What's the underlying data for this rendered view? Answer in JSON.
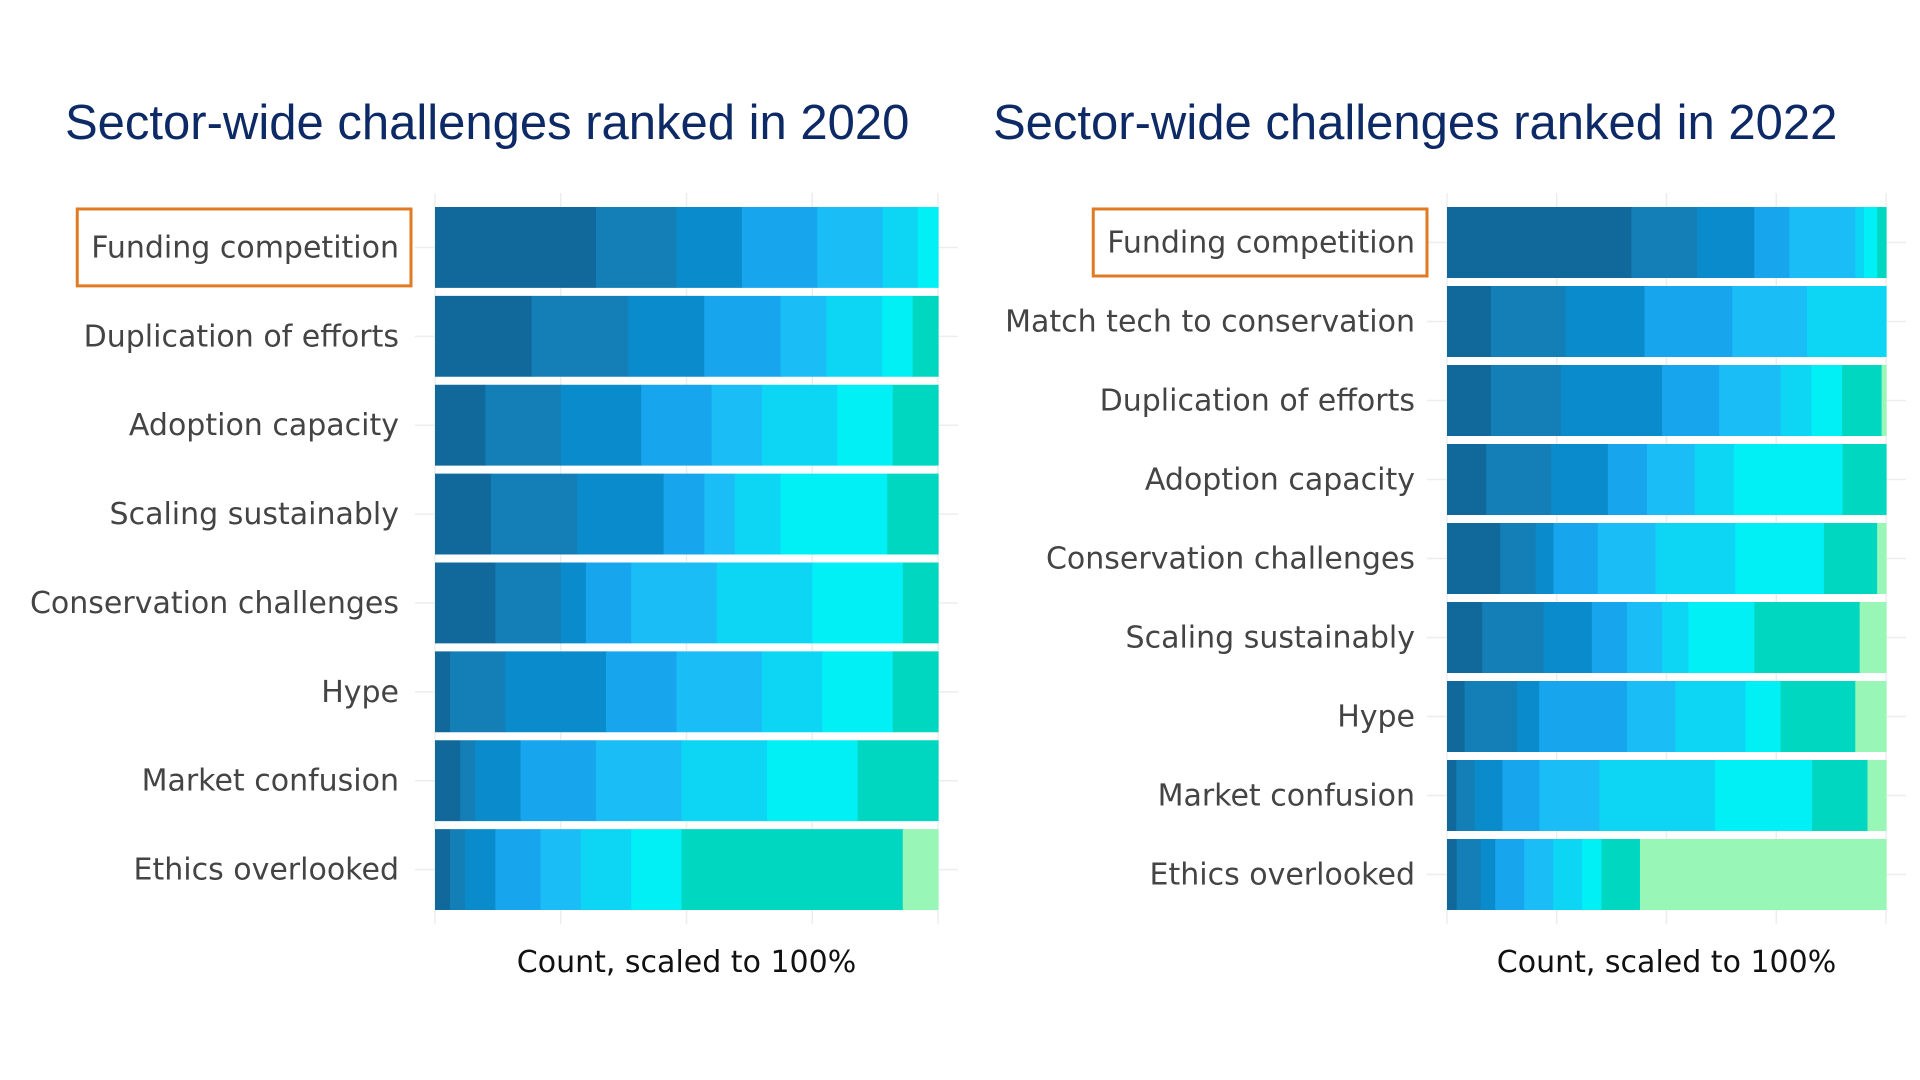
{
  "chart_data": [
    {
      "type": "bar",
      "orientation": "horizontal",
      "stacked": true,
      "normalized": true,
      "title": "Sector-wide challenges ranked in 2020",
      "xlabel": "Count, scaled to 100%",
      "ylabel": "",
      "xlim": [
        0,
        100
      ],
      "grid": true,
      "legend": "none",
      "highlighted_category": "Funding competition",
      "highlight_color": "#e07b24",
      "segment_colors": [
        "#10689b",
        "#137fb6",
        "#0a8ccc",
        "#17a6ed",
        "#1bbdf7",
        "#0dd6f5",
        "#00f0f6",
        "#00d7c0",
        "#98f7b7"
      ],
      "categories": [
        "Funding competition",
        "Duplication of efforts",
        "Adoption capacity",
        "Scaling sustainably",
        "Conservation challenges",
        "Hype",
        "Market confusion",
        "Ethics overlooked"
      ],
      "segments": [
        [
          32,
          16,
          13,
          15,
          13,
          7,
          4,
          0,
          0
        ],
        [
          19,
          19,
          15,
          15,
          9,
          11,
          6,
          5,
          0
        ],
        [
          10,
          15,
          16,
          14,
          10,
          15,
          11,
          9,
          0
        ],
        [
          11,
          17,
          17,
          8,
          6,
          9,
          21,
          10,
          0
        ],
        [
          12,
          13,
          5,
          9,
          17,
          19,
          18,
          7,
          0
        ],
        [
          3,
          11,
          20,
          14,
          17,
          12,
          14,
          9,
          0
        ],
        [
          5,
          3,
          9,
          15,
          17,
          17,
          18,
          16,
          0
        ],
        [
          3,
          3,
          6,
          9,
          8,
          10,
          10,
          44,
          7
        ]
      ]
    },
    {
      "type": "bar",
      "orientation": "horizontal",
      "stacked": true,
      "normalized": true,
      "title": "Sector-wide challenges ranked in 2022",
      "xlabel": "Count, scaled to 100%",
      "ylabel": "",
      "xlim": [
        0,
        100
      ],
      "grid": true,
      "legend": "none",
      "highlighted_category": "Funding competition",
      "highlight_color": "#e07b24",
      "segment_colors": [
        "#10689b",
        "#137fb6",
        "#0a8ccc",
        "#17a6ed",
        "#1bbdf7",
        "#0dd6f5",
        "#00f0f6",
        "#00d7c0",
        "#98f7b7"
      ],
      "categories": [
        "Funding competition",
        "Match tech to conservation",
        "Duplication of efforts",
        "Adoption capacity",
        "Conservation challenges",
        "Scaling sustainably",
        "Hype",
        "Market confusion",
        "Ethics overlooked"
      ],
      "segments": [
        [
          42,
          15,
          13,
          8,
          15,
          2,
          3,
          2,
          0
        ],
        [
          10,
          17,
          18,
          20,
          17,
          18,
          0,
          0,
          0
        ],
        [
          10,
          16,
          23,
          13,
          14,
          7,
          7,
          9,
          1
        ],
        [
          9,
          15,
          13,
          9,
          11,
          9,
          25,
          10,
          0
        ],
        [
          12,
          8,
          4,
          10,
          13,
          18,
          20,
          12,
          2
        ],
        [
          8,
          14,
          11,
          8,
          8,
          6,
          15,
          24,
          6
        ],
        [
          4,
          12,
          5,
          20,
          11,
          16,
          8,
          17,
          7
        ],
        [
          2,
          4,
          6,
          8,
          13,
          25,
          21,
          12,
          4
        ],
        [
          2,
          5,
          3,
          6,
          6,
          6,
          4,
          8,
          51
        ]
      ]
    }
  ]
}
